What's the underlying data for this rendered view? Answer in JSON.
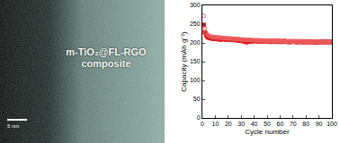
{
  "image_panel": {
    "label": "m-TiO₂@FL-RGO composite",
    "scale_bar": "5 nm"
  },
  "chart_data": {
    "type": "scatter",
    "x_label": "Cycle number",
    "y_label": "Capacity (mAh g⁻¹)",
    "x": [
      1,
      2,
      3,
      4,
      5,
      6,
      7,
      8,
      9,
      10,
      11,
      12,
      13,
      14,
      15,
      16,
      17,
      18,
      19,
      20,
      21,
      22,
      23,
      24,
      25,
      26,
      27,
      28,
      29,
      30,
      31,
      32,
      33,
      34,
      35,
      36,
      37,
      38,
      39,
      40,
      41,
      42,
      43,
      44,
      45,
      46,
      47,
      48,
      49,
      50,
      51,
      52,
      53,
      54,
      55,
      56,
      57,
      58,
      59,
      60,
      61,
      62,
      63,
      64,
      65,
      66,
      67,
      68,
      69,
      70,
      71,
      72,
      73,
      74,
      75,
      76,
      77,
      78,
      79,
      80,
      81,
      82,
      83,
      84,
      85,
      86,
      87,
      88,
      89,
      90,
      91,
      92,
      93,
      94,
      95,
      96,
      97,
      98,
      99,
      100
    ],
    "series": [
      {
        "color": "#d81e1e",
        "marker": "square",
        "values": [
          248,
          228,
          220,
          216,
          214,
          213,
          212,
          212,
          211,
          211,
          211,
          210,
          212,
          209,
          210,
          211,
          210,
          209,
          210,
          209,
          210,
          209,
          208,
          210,
          209,
          207,
          209,
          206,
          208,
          207,
          206,
          204,
          207,
          202,
          205,
          203,
          206,
          205,
          204,
          206,
          205,
          206,
          204,
          205,
          206,
          204,
          205,
          204,
          206,
          205,
          204,
          205,
          203,
          205,
          204,
          205,
          203,
          204,
          205,
          203,
          204,
          203,
          205,
          204,
          203,
          204,
          202,
          204,
          203,
          204,
          203,
          204,
          202,
          203,
          204,
          203,
          202,
          204,
          203,
          202,
          203,
          202,
          204,
          203,
          202,
          203,
          201,
          203,
          202,
          203,
          202,
          203,
          201,
          202,
          203,
          202,
          203,
          201,
          202,
          203
        ]
      },
      {
        "color": "#f06060",
        "marker": "circle-open",
        "values": [
          272,
          238,
          227,
          222,
          219,
          218,
          217,
          216,
          216,
          215,
          215,
          215,
          214,
          214,
          214,
          213,
          213,
          213,
          212,
          212,
          212,
          212,
          211,
          211,
          211,
          210,
          210,
          210,
          210,
          209,
          209,
          209,
          209,
          208,
          208,
          208,
          208,
          208,
          207,
          207,
          207,
          207,
          207,
          207,
          207,
          206,
          206,
          206,
          206,
          206,
          206,
          206,
          206,
          205,
          205,
          205,
          205,
          205,
          205,
          205,
          205,
          205,
          205,
          205,
          204,
          204,
          204,
          204,
          204,
          204,
          204,
          204,
          204,
          204,
          204,
          204,
          203,
          203,
          203,
          203,
          203,
          203,
          203,
          203,
          203,
          203,
          203,
          203,
          203,
          203,
          202,
          202,
          202,
          202,
          202,
          202,
          202,
          202,
          202,
          202
        ]
      }
    ],
    "xlim": [
      0,
      100
    ],
    "xticks": [
      0,
      10,
      20,
      30,
      40,
      50,
      60,
      70,
      80,
      90,
      100
    ],
    "ylim": [
      0,
      300
    ],
    "yticks": [
      0,
      50,
      100,
      150,
      200,
      250,
      300
    ],
    "grid": false
  }
}
